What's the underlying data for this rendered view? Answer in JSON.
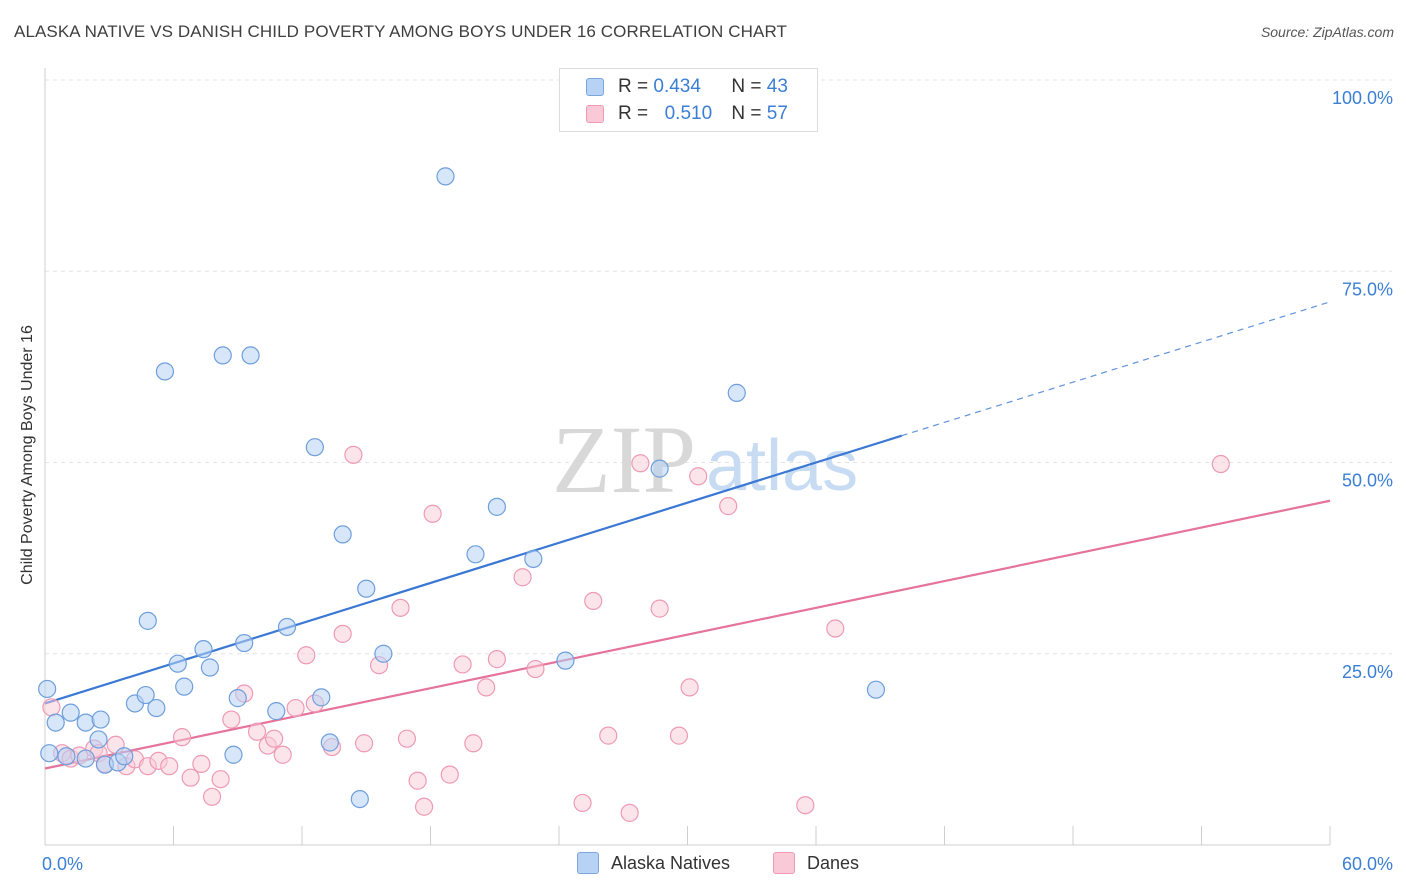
{
  "title": "ALASKA NATIVE VS DANISH CHILD POVERTY AMONG BOYS UNDER 16 CORRELATION CHART",
  "source": "Source: ZipAtlas.com",
  "watermark": {
    "zip": "ZIP",
    "atlas": "atlas"
  },
  "legend_top": [
    {
      "r_label": "R =",
      "r_value": "0.434",
      "n_label": "N =",
      "n_value": "43"
    },
    {
      "r_label": "R =",
      "r_value": "0.510",
      "n_label": "N =",
      "n_value": "57"
    }
  ],
  "colors": {
    "blue": "#3a78d4",
    "pink": "#e6739b",
    "blue_fill": "#b7d2f4",
    "pink_fill": "#f9c9d8",
    "axis_text": "#3b7fd4"
  },
  "chart_data": {
    "type": "scatter",
    "title": "ALASKA NATIVE VS DANISH CHILD POVERTY AMONG BOYS UNDER 16 CORRELATION CHART",
    "xlabel": "",
    "ylabel": "Child Poverty Among Boys Under 16",
    "xlim": [
      0,
      60
    ],
    "ylim": [
      0,
      100
    ],
    "x_tick_labels": [
      "0.0%",
      "60.0%"
    ],
    "y_tick_labels": [
      "100.0%",
      "75.0%",
      "50.0%",
      "25.0%"
    ],
    "y_ticks": [
      100,
      75,
      50,
      25
    ],
    "grid": true,
    "legend_placement": "bottom",
    "series": [
      {
        "name": "Alaska Natives",
        "color": "#3a78d4",
        "r": 0.434,
        "n": 43,
        "trend": {
          "x0": 0,
          "y0": 18.5,
          "x1": 40,
          "y1": 53.5,
          "dashed_to_x": 60,
          "dashed_to_y": 71
        },
        "points": [
          [
            0.1,
            20.4
          ],
          [
            0.5,
            16.0
          ],
          [
            1.2,
            17.3
          ],
          [
            1.9,
            11.3
          ],
          [
            1.9,
            16.0
          ],
          [
            2.5,
            13.8
          ],
          [
            2.6,
            16.4
          ],
          [
            2.8,
            10.5
          ],
          [
            3.4,
            10.8
          ],
          [
            3.7,
            11.6
          ],
          [
            4.2,
            18.5
          ],
          [
            4.7,
            19.6
          ],
          [
            4.8,
            29.3
          ],
          [
            5.2,
            17.9
          ],
          [
            5.6,
            61.9
          ],
          [
            6.2,
            23.7
          ],
          [
            6.5,
            20.7
          ],
          [
            7.4,
            25.6
          ],
          [
            7.7,
            23.2
          ],
          [
            8.3,
            64.0
          ],
          [
            8.8,
            11.8
          ],
          [
            9.0,
            19.2
          ],
          [
            9.3,
            26.4
          ],
          [
            9.6,
            64.0
          ],
          [
            10.8,
            17.5
          ],
          [
            11.3,
            28.5
          ],
          [
            12.6,
            52.0
          ],
          [
            12.9,
            19.3
          ],
          [
            13.3,
            13.4
          ],
          [
            13.9,
            40.6
          ],
          [
            14.7,
            6.0
          ],
          [
            15.0,
            33.5
          ],
          [
            15.8,
            25.0
          ],
          [
            18.7,
            87.4
          ],
          [
            20.1,
            38.0
          ],
          [
            21.1,
            44.2
          ],
          [
            22.8,
            37.4
          ],
          [
            24.3,
            24.1
          ],
          [
            28.7,
            49.2
          ],
          [
            32.3,
            59.1
          ],
          [
            38.8,
            20.3
          ],
          [
            0.2,
            12.0
          ],
          [
            1.0,
            11.6
          ]
        ]
      },
      {
        "name": "Danes",
        "color": "#e6739b",
        "r": 0.51,
        "n": 57,
        "trend": {
          "x0": 0,
          "y0": 10.0,
          "x1": 60,
          "y1": 45.0
        },
        "points": [
          [
            0.3,
            18.0
          ],
          [
            0.8,
            12.0
          ],
          [
            1.2,
            11.3
          ],
          [
            1.6,
            11.7
          ],
          [
            2.3,
            12.6
          ],
          [
            2.5,
            12.0
          ],
          [
            2.8,
            10.6
          ],
          [
            3.3,
            13.1
          ],
          [
            3.8,
            10.3
          ],
          [
            4.2,
            11.2
          ],
          [
            4.8,
            10.3
          ],
          [
            5.3,
            11.0
          ],
          [
            5.8,
            10.3
          ],
          [
            6.4,
            14.1
          ],
          [
            6.8,
            8.8
          ],
          [
            7.3,
            10.6
          ],
          [
            7.8,
            6.3
          ],
          [
            8.2,
            8.6
          ],
          [
            8.7,
            16.4
          ],
          [
            9.3,
            19.8
          ],
          [
            9.9,
            14.8
          ],
          [
            10.4,
            13.0
          ],
          [
            10.7,
            13.9
          ],
          [
            11.1,
            11.8
          ],
          [
            11.7,
            17.9
          ],
          [
            12.2,
            24.8
          ],
          [
            12.6,
            18.5
          ],
          [
            13.4,
            12.8
          ],
          [
            13.9,
            27.6
          ],
          [
            14.4,
            51.0
          ],
          [
            14.9,
            13.3
          ],
          [
            15.6,
            23.5
          ],
          [
            16.6,
            31.0
          ],
          [
            16.9,
            13.9
          ],
          [
            17.4,
            8.4
          ],
          [
            17.7,
            5.0
          ],
          [
            18.1,
            43.3
          ],
          [
            18.9,
            9.2
          ],
          [
            19.5,
            23.6
          ],
          [
            20.0,
            13.3
          ],
          [
            20.6,
            20.6
          ],
          [
            21.1,
            24.3
          ],
          [
            22.3,
            35.0
          ],
          [
            22.9,
            23.0
          ],
          [
            25.1,
            5.5
          ],
          [
            25.6,
            31.9
          ],
          [
            26.3,
            14.3
          ],
          [
            27.3,
            4.2
          ],
          [
            27.8,
            49.9
          ],
          [
            28.7,
            30.9
          ],
          [
            29.6,
            14.3
          ],
          [
            30.1,
            20.6
          ],
          [
            30.5,
            48.2
          ],
          [
            31.9,
            44.3
          ],
          [
            35.5,
            5.2
          ],
          [
            36.9,
            28.3
          ],
          [
            54.9,
            49.8
          ]
        ]
      }
    ]
  }
}
